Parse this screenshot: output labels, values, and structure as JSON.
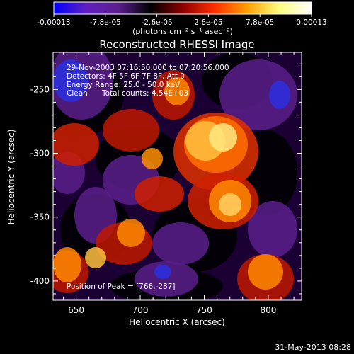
{
  "chart_data": {
    "type": "heatmap",
    "title": "Reconstructed RHESSI Image",
    "xlabel": "Heliocentric X (arcsec)",
    "ylabel": "Heliocentric Y (arcsec)",
    "xlim": [
      632,
      826
    ],
    "ylim": [
      -415,
      -221
    ],
    "x_ticks": [
      "650",
      "700",
      "750",
      "800"
    ],
    "x_tick_values": [
      650,
      700,
      750,
      800
    ],
    "y_ticks": [
      "-250",
      "-300",
      "-350",
      "-400"
    ],
    "y_tick_values": [
      -250,
      -300,
      -350,
      -400
    ],
    "colorbar": {
      "range": [
        -0.00013,
        0.00013
      ],
      "tick_labels": [
        "-0.00013",
        "-7.8e-05",
        "-2.6e-05",
        "2.6e-05",
        "7.8e-05",
        "0.00013"
      ],
      "tick_values": [
        -0.00013,
        -7.8e-05,
        -2.6e-05,
        2.6e-05,
        7.8e-05,
        0.00013
      ],
      "unit_label": "(photons cm⁻² s⁻¹ asec⁻²)",
      "stops": [
        "#0000ff",
        "#6020c0",
        "#5a1f8c",
        "#000000",
        "#8a0000",
        "#ff3000",
        "#ffa000",
        "#ffff80",
        "#ffffff"
      ]
    },
    "annotations": {
      "time_range": "29-Nov-2003 07:16:50.000 to 07:20:56.000",
      "detectors": "Detectors: 4F 5F 6F 7F 8F, Att 0",
      "energy_range": "Energy Range: 25.0 - 50.0 keV",
      "clean": "Clean",
      "total_counts": "Total counts: 4.54E+03",
      "peak_position": "Position of Peak = [766,-287]"
    },
    "peak": [
      766,
      -287
    ],
    "footer_date": "31-May-2013 08:28"
  }
}
